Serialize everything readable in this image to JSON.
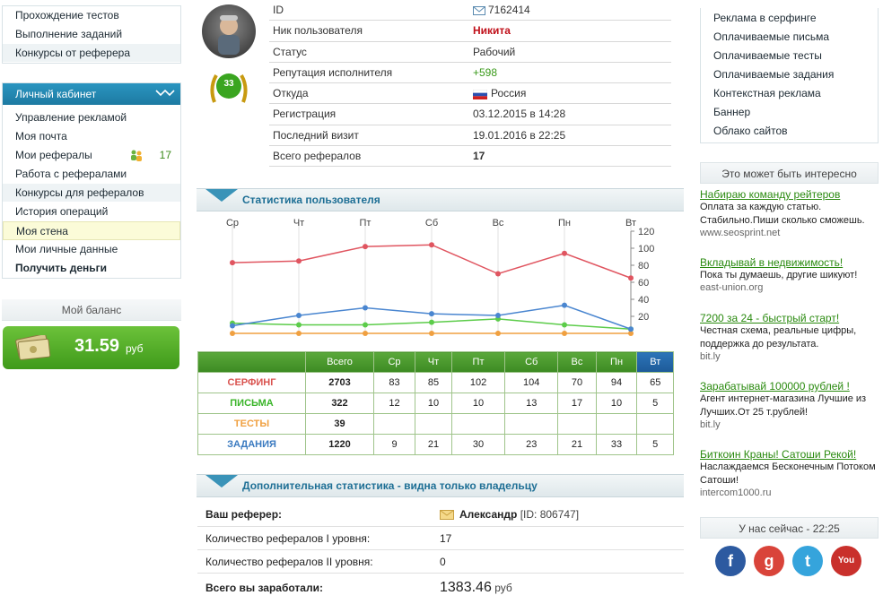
{
  "left_top_menu": [
    {
      "label": "Прохождение тестов"
    },
    {
      "label": "Выполнение заданий"
    },
    {
      "label": "Конкурсы от реферера"
    }
  ],
  "cabinet": {
    "title": "Личный кабинет",
    "items": [
      {
        "label": "Управление рекламой"
      },
      {
        "label": "Моя почта"
      },
      {
        "label": "Мои рефералы",
        "count": "17"
      },
      {
        "label": "Работа с рефералами"
      },
      {
        "label": "Конкурсы для рефералов"
      },
      {
        "label": "История операций"
      },
      {
        "label": "Моя стена"
      },
      {
        "label": "Мои личные данные"
      },
      {
        "label": "Получить деньги"
      }
    ]
  },
  "balance": {
    "title": "Мой баланс",
    "amount": "31.59",
    "currency": "руб"
  },
  "profile": {
    "level_badge": "33",
    "rows": [
      {
        "label": "ID",
        "value": "7162414"
      },
      {
        "label": "Ник пользователя",
        "value": "Никита"
      },
      {
        "label": "Статус",
        "value": "Рабочий"
      },
      {
        "label": "Репутация исполнителя",
        "value": "+598"
      },
      {
        "label": "Откуда",
        "value": "Россия"
      },
      {
        "label": "Регистрация",
        "value": "03.12.2015 в 14:28"
      },
      {
        "label": "Последний визит",
        "value": "19.01.2016 в 22:25"
      },
      {
        "label": "Всего рефералов",
        "value": "17"
      }
    ]
  },
  "stats_section": {
    "title": "Статистика пользователя"
  },
  "chart_data": {
    "type": "line",
    "categories": [
      "Ср",
      "Чт",
      "Пт",
      "Сб",
      "Вс",
      "Пн",
      "Вт"
    ],
    "ylim": [
      0,
      120
    ],
    "yticks": [
      20,
      40,
      60,
      80,
      100,
      120
    ],
    "series": [
      {
        "name": "СЕРФИНГ",
        "color": "#e05560",
        "values": [
          83,
          85,
          102,
          104,
          70,
          94,
          65
        ]
      },
      {
        "name": "ПИСЬМА",
        "color": "#5ccc4a",
        "values": [
          12,
          10,
          10,
          13,
          17,
          10,
          5
        ]
      },
      {
        "name": "ТЕСТЫ",
        "color": "#f0a040",
        "values": [
          0,
          0,
          0,
          0,
          0,
          0,
          0
        ]
      },
      {
        "name": "ЗАДАНИЯ",
        "color": "#4a86d0",
        "values": [
          9,
          21,
          30,
          23,
          21,
          33,
          5
        ]
      }
    ]
  },
  "stats_table": {
    "header_total": "Всего",
    "days": [
      "Ср",
      "Чт",
      "Пт",
      "Сб",
      "Вс",
      "Пн",
      "Вт"
    ],
    "rows": [
      {
        "label": "СЕРФИНГ",
        "color": "#d9534f",
        "total": "2703",
        "cells": [
          "83",
          "85",
          "102",
          "104",
          "70",
          "94",
          "65"
        ]
      },
      {
        "label": "ПИСЬМА",
        "color": "#3bb52a",
        "total": "322",
        "cells": [
          "12",
          "10",
          "10",
          "13",
          "17",
          "10",
          "5"
        ]
      },
      {
        "label": "ТЕСТЫ",
        "color": "#f0a040",
        "total": "39",
        "cells": [
          "",
          "",
          "",
          "",
          "",
          "",
          ""
        ]
      },
      {
        "label": "ЗАДАНИЯ",
        "color": "#3a7ac0",
        "total": "1220",
        "cells": [
          "9",
          "21",
          "30",
          "23",
          "21",
          "33",
          "5"
        ]
      }
    ]
  },
  "extra": {
    "title": "Дополнительная статистика - видна только владельцу",
    "referrer_label": "Ваш реферер:",
    "referrer_name": "Александр",
    "referrer_id": "[ID: 806747]",
    "lvl1_label": "Количество рефералов I уровня:",
    "lvl1_value": "17",
    "lvl2_label": "Количество рефералов II уровня:",
    "lvl2_value": "0",
    "earned_label": "Всего вы заработали:",
    "earned_value": "1383.46",
    "earned_currency": "руб"
  },
  "right_menu": [
    {
      "label": "Реклама в серфинге"
    },
    {
      "label": "Оплачиваемые письма"
    },
    {
      "label": "Оплачиваемые тесты"
    },
    {
      "label": "Оплачиваемые задания"
    },
    {
      "label": "Контекстная реклама"
    },
    {
      "label": "Баннер"
    },
    {
      "label": "Облако сайтов"
    }
  ],
  "interesting": {
    "title": "Это может быть интересно",
    "promos": [
      {
        "title": "Набираю команду рейтеров",
        "text": "Оплата за каждую статью. Стабильно.Пиши сколько сможешь.",
        "url": "www.seosprint.net"
      },
      {
        "title": "Вкладывай в недвижимость!",
        "text": "Пока ты думаешь, другие шикуют!",
        "url": "east-union.org"
      },
      {
        "title": "7200 за 24 - быстрый старт!",
        "text": "Честная схема, реальные цифры, поддержка до результата.",
        "url": "bit.ly"
      },
      {
        "title": "Зарабатывай 100000 рублей !",
        "text": "Агент интернет-магазина Лучшие из Лучших.От 25 т.рублей!",
        "url": "bit.ly"
      },
      {
        "title": "Биткоин Краны! Сатоши Рекой!",
        "text": "Наслаждаемся Бесконечным Потоком Сатоши!",
        "url": "intercom1000.ru"
      }
    ]
  },
  "now": {
    "label": "У нас сейчас - 22:25"
  },
  "social": [
    {
      "name": "facebook",
      "glyph": "f",
      "color": "#2d5aa0"
    },
    {
      "name": "google",
      "glyph": "g",
      "color": "#d9443a"
    },
    {
      "name": "twitter",
      "glyph": "t",
      "color": "#35a4dc"
    },
    {
      "name": "youtube",
      "glyph": "You",
      "color": "#c9302c"
    }
  ]
}
